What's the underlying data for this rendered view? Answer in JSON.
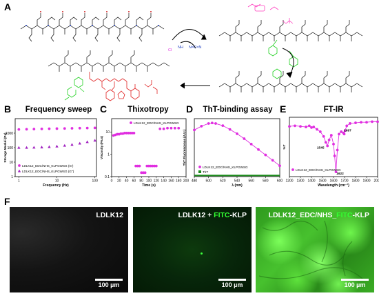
{
  "figure": {
    "panels": {
      "A": "A",
      "B": "B",
      "C": "C",
      "D": "D",
      "E": "E",
      "F": "F"
    },
    "scheme": {
      "reagent_label": "N=C=N",
      "reagent_cl": "Cl",
      "reagent_nh": "NH"
    },
    "micro": [
      {
        "label_pre": "LDLK12",
        "label_fitc": "",
        "label_post": "",
        "scale": "100 µm"
      },
      {
        "label_pre": "LDLK12 + ",
        "label_fitc": "FITC",
        "label_post": "-KLP",
        "scale": "100 µm"
      },
      {
        "label_pre": "LDLK12_EDC/NHS_",
        "label_fitc": "FITC",
        "label_post": "-KLP",
        "scale": "100 µm"
      }
    ],
    "colors": {
      "magenta": "#e02ee0",
      "purple": "#a020c0",
      "green": "#1a8a1a",
      "fitc": "#33ff33"
    }
  },
  "chart_data": [
    {
      "id": "B",
      "type": "scatter",
      "title": "Frequency sweep",
      "xlabel": "Frequency (Hz)",
      "ylabel": "Storage Moduli (Pa)",
      "xscale": "log",
      "yscale": "log",
      "xlim": [
        0.8,
        110
      ],
      "ylim": [
        1,
        10000
      ],
      "xticks": [
        1,
        10,
        100
      ],
      "xticklabels": [
        "1",
        "10",
        "100"
      ],
      "yticks": [
        1,
        10,
        100,
        1000
      ],
      "yticklabels": [
        "1",
        "10",
        "100",
        "1000"
      ],
      "legend_position": "bottom-left",
      "series": [
        {
          "name": "LDLK12_EDC/NHS_KLPGWSG (G')",
          "color": "#e02ee0",
          "marker": "circle",
          "x": [
            1,
            1.6,
            2.5,
            4,
            6.3,
            10,
            16,
            25,
            40,
            63,
            100
          ],
          "y": [
            1800,
            1850,
            1900,
            1950,
            2000,
            2050,
            2100,
            2150,
            2200,
            2250,
            2300
          ]
        },
        {
          "name": "LDLK12_EDC/NHS_KLPGWSG (G'')",
          "color": "#a020c0",
          "marker": "triangle",
          "x": [
            1,
            1.6,
            2.5,
            4,
            6.3,
            10,
            16,
            25,
            40,
            63,
            100
          ],
          "y": [
            100,
            100,
            102,
            106,
            112,
            122,
            138,
            160,
            195,
            245,
            310
          ]
        }
      ]
    },
    {
      "id": "C",
      "type": "scatter",
      "title": "Thixotropy",
      "xlabel": "Time (s)",
      "ylabel": "Viscosity (Pa.s)",
      "yscale": "log",
      "xlim": [
        0,
        200
      ],
      "ylim": [
        0.1,
        40
      ],
      "xticks": [
        0,
        20,
        40,
        60,
        80,
        100,
        120,
        140,
        160,
        180,
        200
      ],
      "xticklabels": [
        "0",
        "20",
        "40",
        "60",
        "80",
        "100",
        "120",
        "140",
        "160",
        "180",
        "200"
      ],
      "yticks": [
        0.1,
        1,
        10
      ],
      "yticklabels": [
        "0.1",
        "1",
        "10"
      ],
      "legend_position": "top",
      "series": [
        {
          "name": "LDLK12_EDC/NHS_KLPGWSG",
          "color": "#e02ee0",
          "marker": "circle",
          "x": [
            5,
            10,
            15,
            20,
            25,
            30,
            35,
            40,
            45,
            50,
            55,
            60,
            65,
            70,
            75,
            80,
            85,
            90,
            95,
            100,
            105,
            110,
            115,
            120,
            130,
            140,
            150,
            160,
            170,
            180
          ],
          "y": [
            7,
            7.5,
            8,
            8,
            8.5,
            8.5,
            9,
            9,
            9,
            9,
            9,
            9,
            0.3,
            0.3,
            0.3,
            0.15,
            0.15,
            0.15,
            0.3,
            0.3,
            0.3,
            0.3,
            0.3,
            0.3,
            14,
            14,
            15,
            15,
            15,
            15
          ]
        }
      ]
    },
    {
      "id": "D",
      "type": "line",
      "title": "ThT-binding assay",
      "xlabel": "λ (nm)",
      "ylabel": "ThT Fluorescence (A.U.)",
      "xlim": [
        480,
        600
      ],
      "xticks": [
        480,
        500,
        520,
        540,
        560,
        580,
        600
      ],
      "xticklabels": [
        "480",
        "500",
        "520",
        "540",
        "560",
        "580",
        "600"
      ],
      "legend_position": "bottom",
      "series": [
        {
          "name": "LDLK12_EDC/NHS_KLPGWSG",
          "color": "#e02ee0",
          "x": [
            480,
            490,
            500,
            505,
            510,
            520,
            530,
            540,
            550,
            560,
            570,
            580,
            590,
            600
          ],
          "y": [
            0.86,
            0.93,
            0.98,
            0.99,
            0.98,
            0.94,
            0.87,
            0.79,
            0.7,
            0.6,
            0.5,
            0.4,
            0.3,
            0.2
          ]
        },
        {
          "name": "ThT",
          "color": "#1a8a1a",
          "x": [
            480,
            500,
            520,
            540,
            560,
            580,
            600
          ],
          "y": [
            0.02,
            0.02,
            0.02,
            0.02,
            0.02,
            0.02,
            0.02
          ]
        }
      ]
    },
    {
      "id": "E",
      "type": "line",
      "title": "FT-IR",
      "xlabel": "Wavelength (cm⁻¹)",
      "ylabel": "%T",
      "xlim": [
        1200,
        2000
      ],
      "xticks": [
        1200,
        1300,
        1400,
        1500,
        1600,
        1700,
        1800,
        1900,
        2000
      ],
      "xticklabels": [
        "1200",
        "1300",
        "1400",
        "1500",
        "1600",
        "1700",
        "1800",
        "1900",
        "2000"
      ],
      "legend_position": "bottom-left",
      "annotations": [
        {
          "text": "1545",
          "x": 1545
        },
        {
          "text": "1622",
          "x": 1622
        },
        {
          "text": "1697",
          "x": 1697
        }
      ],
      "series": [
        {
          "name": "LDLK12_EDC/NHS_KLPGWSG",
          "color": "#e02ee0",
          "x": [
            1200,
            1250,
            1300,
            1350,
            1380,
            1400,
            1420,
            1450,
            1480,
            1510,
            1530,
            1545,
            1560,
            1580,
            1600,
            1610,
            1622,
            1635,
            1650,
            1670,
            1690,
            1697,
            1705,
            1720,
            1750,
            1800,
            1850,
            1900,
            1950,
            2000
          ],
          "y": [
            0.85,
            0.86,
            0.85,
            0.84,
            0.86,
            0.83,
            0.84,
            0.8,
            0.76,
            0.68,
            0.58,
            0.52,
            0.62,
            0.7,
            0.55,
            0.35,
            0.08,
            0.45,
            0.72,
            0.76,
            0.74,
            0.72,
            0.78,
            0.86,
            0.9,
            0.91,
            0.92,
            0.92,
            0.93,
            0.93
          ]
        }
      ]
    }
  ]
}
